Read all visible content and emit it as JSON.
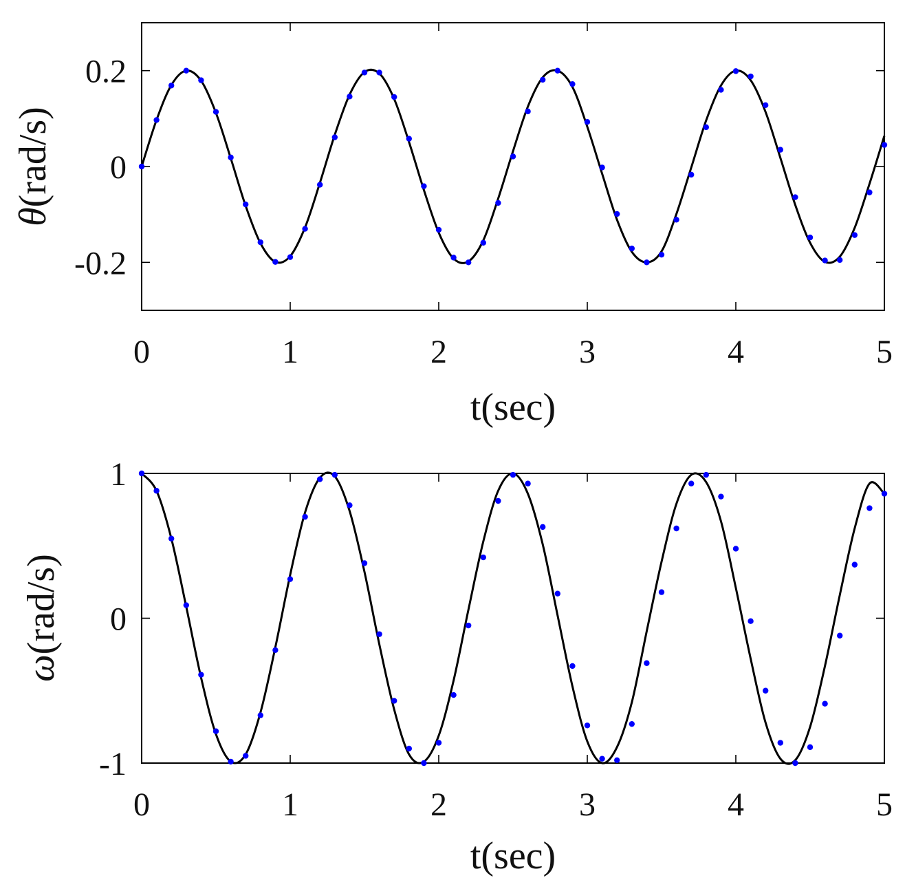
{
  "chart_data": [
    {
      "type": "line",
      "id": "theta",
      "xlabel": "t(sec)",
      "ylabel_symbol": "θ",
      "ylabel_unit": "(rad/s)",
      "xlim": [
        0,
        5
      ],
      "ylim": [
        -0.3,
        0.3
      ],
      "xticks": [
        0,
        1,
        2,
        3,
        4,
        5
      ],
      "xtick_labels": [
        "0",
        "1",
        "2",
        "3",
        "4",
        "5"
      ],
      "yticks": [
        -0.2,
        0,
        0.2
      ],
      "ytick_labels": [
        "-0.2",
        "0",
        "0.2"
      ],
      "grid": false,
      "colors": {
        "line": "#000000",
        "markers": "#0000ff"
      },
      "series": [
        {
          "style": "line",
          "x": [
            0,
            0.1,
            0.2,
            0.3,
            0.4,
            0.5,
            0.6,
            0.7,
            0.8,
            0.9,
            1.0,
            1.1,
            1.2,
            1.3,
            1.4,
            1.5,
            1.6,
            1.7,
            1.8,
            1.9,
            2.0,
            2.1,
            2.2,
            2.3,
            2.4,
            2.5,
            2.6,
            2.7,
            2.8,
            2.9,
            3.0,
            3.1,
            3.2,
            3.3,
            3.4,
            3.5,
            3.6,
            3.7,
            3.8,
            3.9,
            4.0,
            4.1,
            4.2,
            4.3,
            4.4,
            4.5,
            4.6,
            4.7,
            4.8,
            4.9,
            5.0
          ],
          "y": [
            0,
            0.097,
            0.17,
            0.2,
            0.179,
            0.112,
            0.017,
            -0.082,
            -0.16,
            -0.199,
            -0.187,
            -0.127,
            -0.034,
            0.066,
            0.15,
            0.197,
            0.194,
            0.141,
            0.051,
            -0.049,
            -0.138,
            -0.192,
            -0.198,
            -0.154,
            -0.067,
            0.032,
            0.125,
            0.186,
            0.2,
            0.166,
            0.083,
            -0.015,
            -0.111,
            -0.178,
            -0.2,
            -0.177,
            -0.099,
            -0.002,
            0.096,
            0.169,
            0.2,
            0.18,
            0.114,
            0.018,
            -0.08,
            -0.159,
            -0.199,
            -0.188,
            -0.128,
            -0.036,
            0.064
          ]
        },
        {
          "style": "markers",
          "x": [
            0,
            0.1,
            0.2,
            0.3,
            0.4,
            0.5,
            0.6,
            0.7,
            0.8,
            0.9,
            1.0,
            1.1,
            1.2,
            1.3,
            1.4,
            1.5,
            1.6,
            1.7,
            1.8,
            1.9,
            2.0,
            2.1,
            2.2,
            2.3,
            2.4,
            2.5,
            2.6,
            2.7,
            2.8,
            2.9,
            3.0,
            3.1,
            3.2,
            3.3,
            3.4,
            3.5,
            3.6,
            3.7,
            3.8,
            3.9,
            4.0,
            4.1,
            4.2,
            4.3,
            4.4,
            4.5,
            4.6,
            4.7,
            4.8,
            4.9,
            5.0
          ],
          "y": [
            0,
            0.097,
            0.169,
            0.2,
            0.18,
            0.114,
            0.019,
            -0.079,
            -0.158,
            -0.199,
            -0.189,
            -0.13,
            -0.038,
            0.061,
            0.146,
            0.196,
            0.196,
            0.145,
            0.058,
            -0.041,
            -0.132,
            -0.19,
            -0.2,
            -0.159,
            -0.076,
            0.021,
            0.115,
            0.181,
            0.2,
            0.172,
            0.093,
            -0.002,
            -0.099,
            -0.171,
            -0.2,
            -0.184,
            -0.111,
            -0.017,
            0.082,
            0.16,
            0.199,
            0.188,
            0.128,
            0.035,
            -0.064,
            -0.148,
            -0.196,
            -0.195,
            -0.143,
            -0.054,
            0.045
          ]
        }
      ]
    },
    {
      "type": "line",
      "id": "omega",
      "xlabel": "t(sec)",
      "ylabel_symbol": "ω",
      "ylabel_unit": "(rad/s)",
      "xlim": [
        0,
        5
      ],
      "ylim": [
        -1,
        1
      ],
      "xticks": [
        0,
        1,
        2,
        3,
        4,
        5
      ],
      "xtick_labels": [
        "0",
        "1",
        "2",
        "3",
        "4",
        "5"
      ],
      "yticks": [
        -1,
        0,
        1
      ],
      "ytick_labels": [
        "-1",
        "0",
        "1"
      ],
      "grid": false,
      "colors": {
        "line": "#000000",
        "markers": "#0000ff"
      },
      "series": [
        {
          "style": "line",
          "x": [
            0,
            0.1,
            0.2,
            0.3,
            0.4,
            0.5,
            0.6,
            0.7,
            0.8,
            0.9,
            1.0,
            1.1,
            1.2,
            1.3,
            1.4,
            1.5,
            1.6,
            1.7,
            1.8,
            1.9,
            2.0,
            2.1,
            2.2,
            2.3,
            2.4,
            2.5,
            2.6,
            2.7,
            2.8,
            2.9,
            3.0,
            3.1,
            3.2,
            3.3,
            3.4,
            3.5,
            3.6,
            3.7,
            3.8,
            3.9,
            4.0,
            4.1,
            4.2,
            4.3,
            4.4,
            4.5,
            4.6,
            4.7,
            4.8,
            4.9,
            5.0
          ],
          "y": [
            1.0,
            0.88,
            0.55,
            0.08,
            -0.41,
            -0.8,
            -0.99,
            -0.94,
            -0.65,
            -0.2,
            0.3,
            0.73,
            0.97,
            0.98,
            0.74,
            0.32,
            -0.18,
            -0.63,
            -0.94,
            -0.99,
            -0.81,
            -0.43,
            0.06,
            0.53,
            0.88,
            1.0,
            0.86,
            0.51,
            0.02,
            -0.47,
            -0.85,
            -1.0,
            -0.89,
            -0.58,
            -0.09,
            0.39,
            0.79,
            0.99,
            0.94,
            0.67,
            0.21,
            -0.28,
            -0.72,
            -0.97,
            -0.98,
            -0.75,
            -0.33,
            0.16,
            0.62,
            0.93,
            0.86
          ]
        },
        {
          "style": "markers",
          "x": [
            0,
            0.1,
            0.2,
            0.3,
            0.4,
            0.5,
            0.6,
            0.7,
            0.8,
            0.9,
            1.0,
            1.1,
            1.2,
            1.3,
            1.4,
            1.5,
            1.6,
            1.7,
            1.8,
            1.9,
            2.0,
            2.1,
            2.2,
            2.3,
            2.4,
            2.5,
            2.6,
            2.7,
            2.8,
            2.9,
            3.0,
            3.1,
            3.2,
            3.3,
            3.4,
            3.5,
            3.6,
            3.7,
            3.8,
            3.9,
            4.0,
            4.1,
            4.2,
            4.3,
            4.4,
            4.5,
            4.6,
            4.7,
            4.8,
            4.9,
            5.0
          ],
          "y": [
            1.0,
            0.88,
            0.55,
            0.09,
            -0.39,
            -0.78,
            -0.99,
            -0.95,
            -0.67,
            -0.22,
            0.27,
            0.7,
            0.96,
            0.99,
            0.78,
            0.38,
            -0.11,
            -0.57,
            -0.9,
            -1.0,
            -0.86,
            -0.53,
            -0.05,
            0.42,
            0.81,
            0.99,
            0.93,
            0.63,
            0.17,
            -0.33,
            -0.74,
            -0.97,
            -0.98,
            -0.73,
            -0.31,
            0.18,
            0.62,
            0.93,
            0.99,
            0.84,
            0.48,
            -0.02,
            -0.5,
            -0.86,
            -1.0,
            -0.89,
            -0.59,
            -0.12,
            0.37,
            0.76,
            0.86
          ]
        }
      ]
    }
  ]
}
